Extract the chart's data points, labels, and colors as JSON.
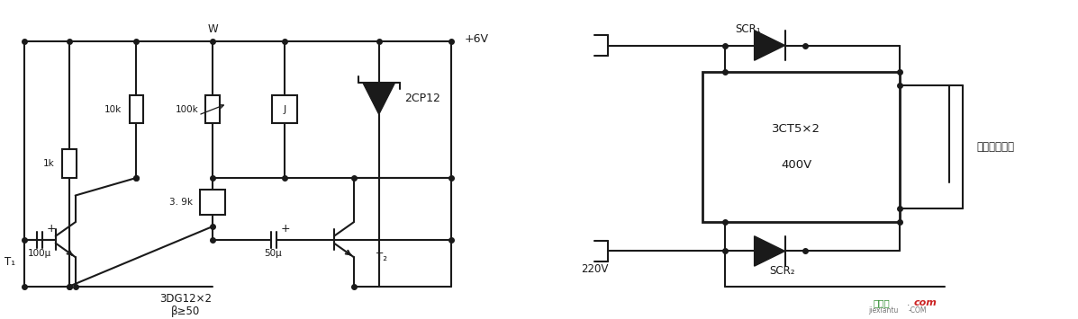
{
  "background_color": "#ffffff",
  "line_color": "#1a1a1a",
  "line_width": 1.5,
  "fig_width": 11.97,
  "fig_height": 3.55,
  "labels": {
    "plus6v": "+6V",
    "comp1k": "1k",
    "comp10k": "10k",
    "compW": "W",
    "comp100k": "100k",
    "compJ": "J",
    "comp2cp12": "2CP12",
    "comp39k": "3. 9k",
    "comp100u": "100μ",
    "comp50u": "50μ",
    "compT1": "T₁",
    "compT2": "T₂",
    "comp3dg": "3DG12×2",
    "compbeta": "β≥50",
    "scr1": "SCR₁",
    "scr2": "SCR₂",
    "comp3ct": "3CT5×2",
    "comp400v": "400V",
    "comp220v": "220V",
    "label_right": "接电扇电源线"
  }
}
